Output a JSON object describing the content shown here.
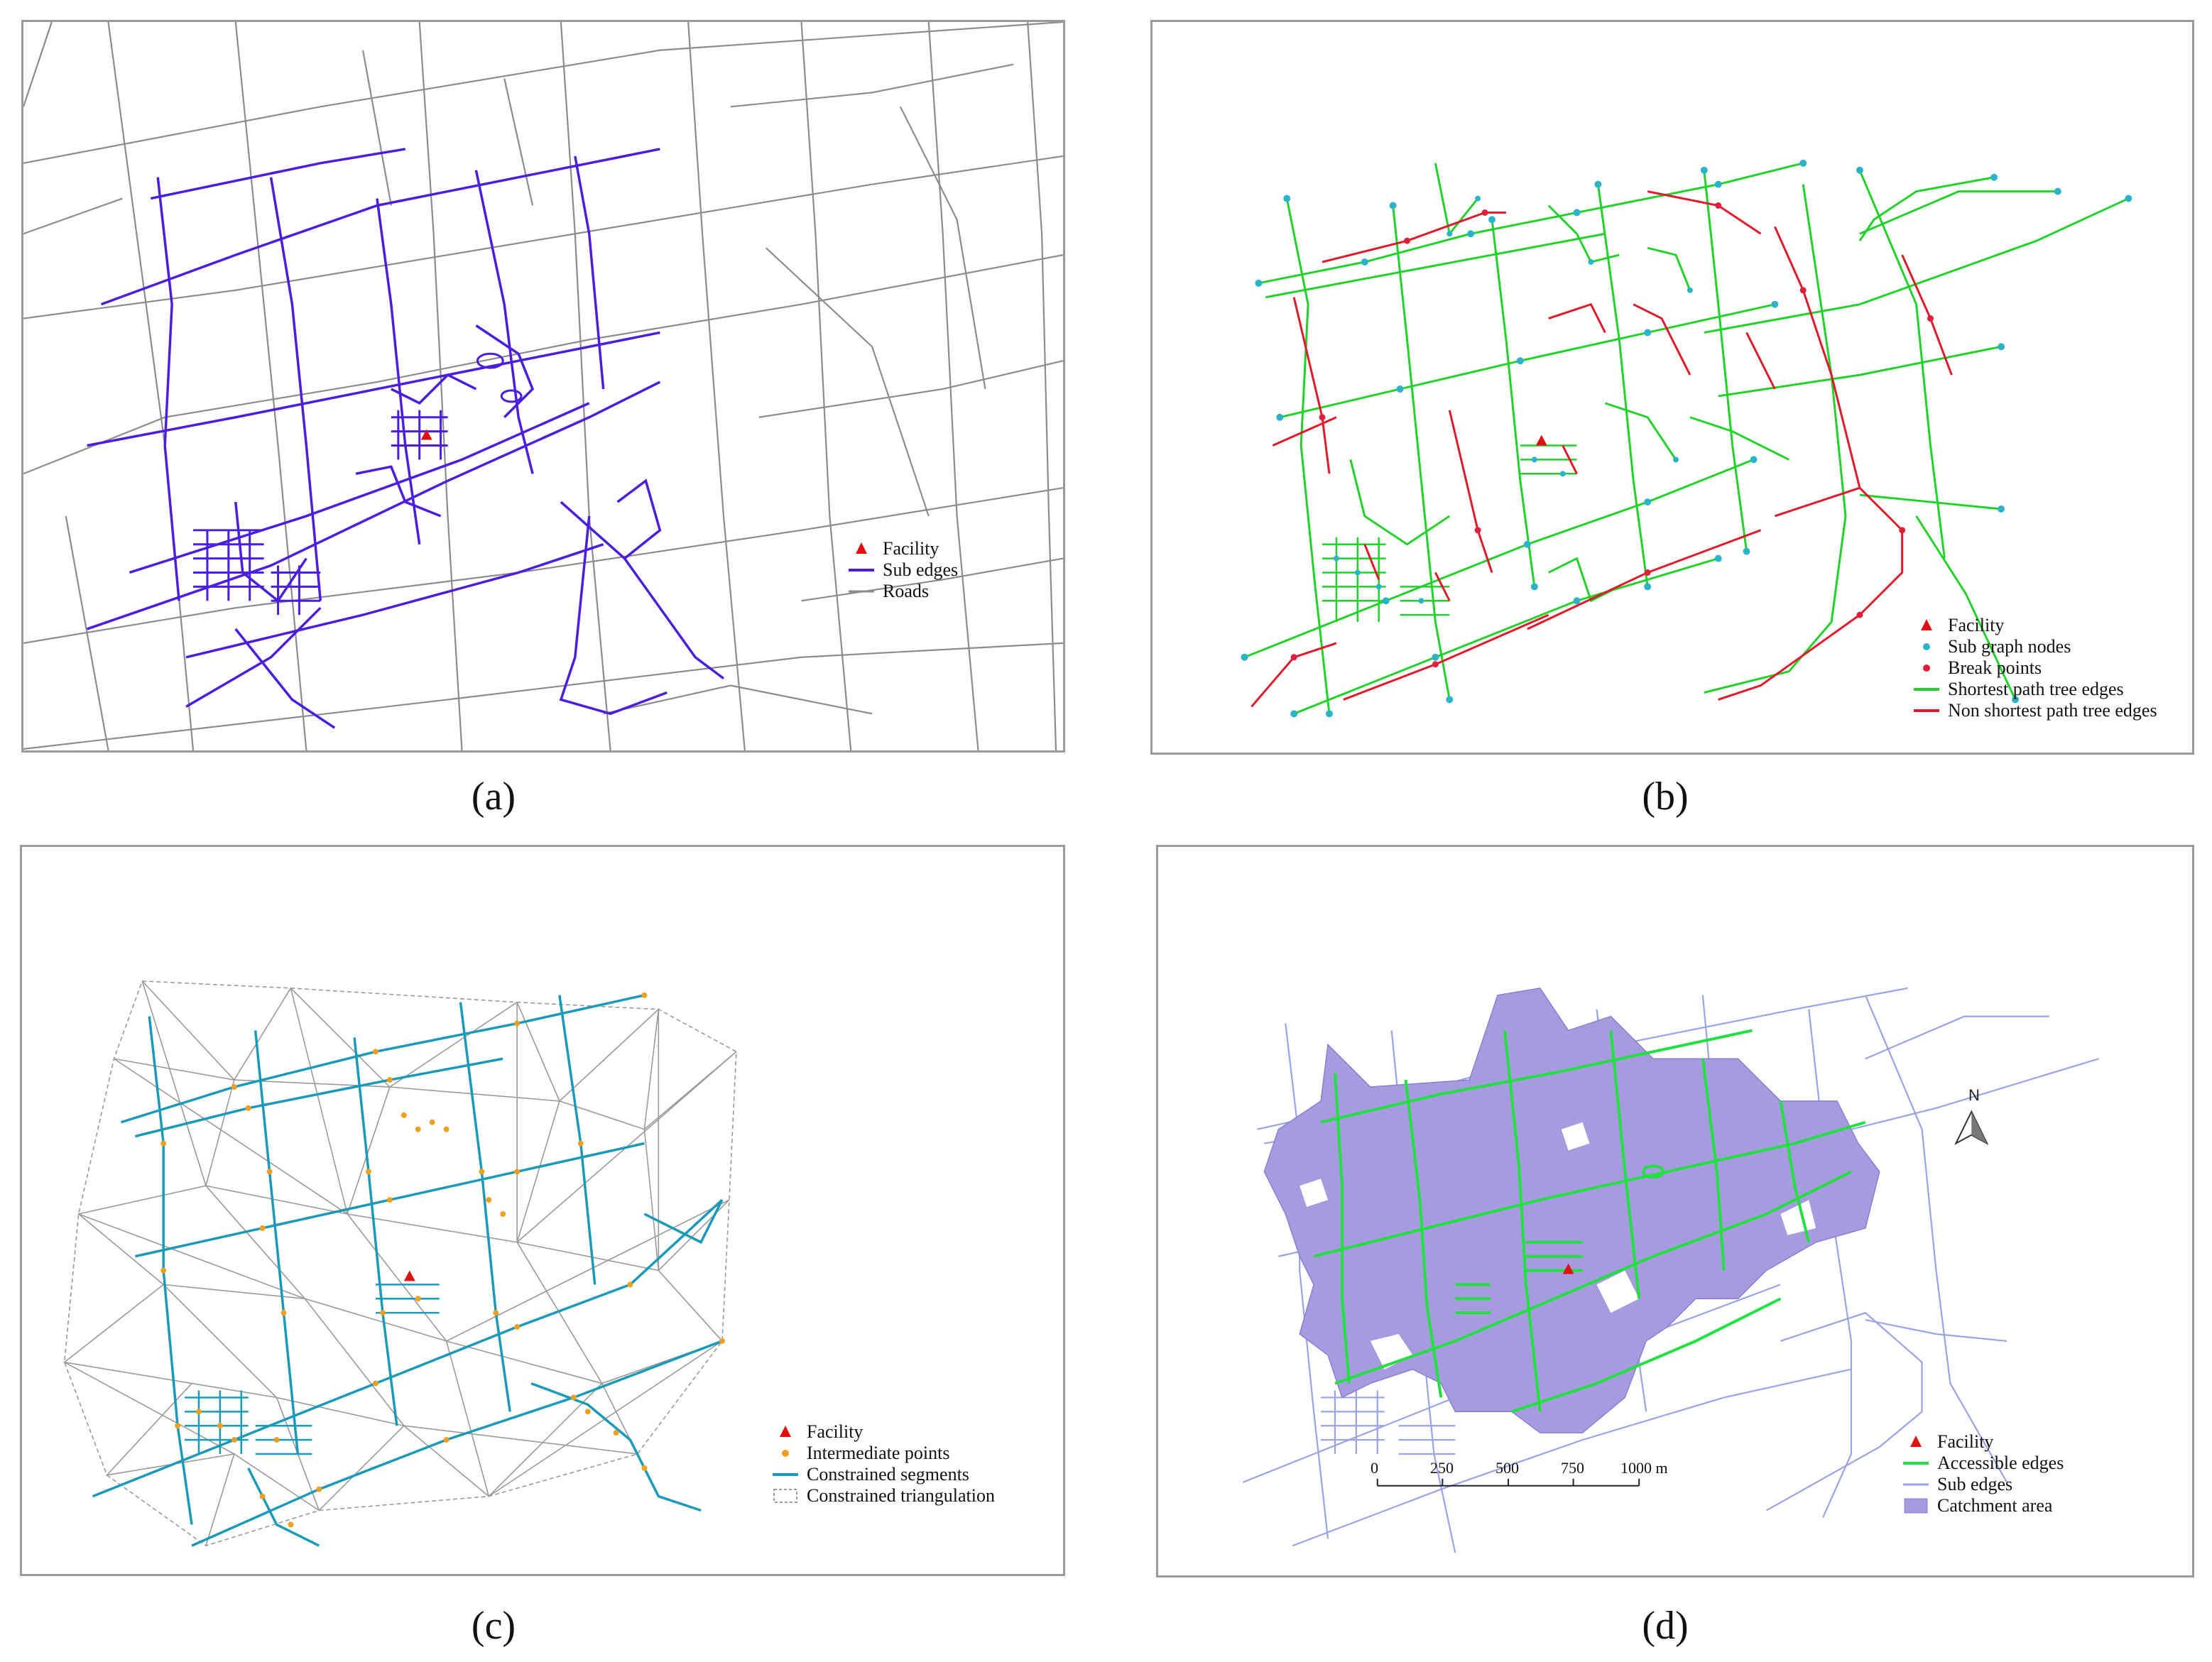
{
  "panels": {
    "a": {
      "caption": "(a)",
      "legend": [
        "Facility",
        "Sub edges",
        "Roads"
      ]
    },
    "b": {
      "caption": "(b)",
      "legend": [
        "Facility",
        "Sub graph nodes",
        "Break points",
        "Shortest path tree edges",
        "Non shortest path tree edges"
      ]
    },
    "c": {
      "caption": "(c)",
      "legend": [
        "Facility",
        "Intermediate points",
        "Constrained segments",
        "Constrained triangulation"
      ]
    },
    "d": {
      "caption": "(d)",
      "legend": [
        "Facility",
        "Accessible edges",
        "Sub edges",
        "Catchment area"
      ],
      "north": "N",
      "scale_labels": [
        "0",
        "250",
        "500",
        "750",
        "1000 m"
      ]
    }
  },
  "colors": {
    "facility": "#e01010",
    "sub_edges_a": "#4a1de0",
    "roads": "#8c8c8c",
    "sub_nodes": "#2bb3c9",
    "break_points": "#e0203a",
    "spt_edges": "#22d12a",
    "non_spt_edges": "#e01a2a",
    "intermediate_points": "#f0a020",
    "constrained_segments": "#1a9ab8",
    "triangulation": "#9a9a9a",
    "accessible_edges": "#22e040",
    "sub_edges_d": "#9aa3e6",
    "catchment": "#a79be0"
  }
}
